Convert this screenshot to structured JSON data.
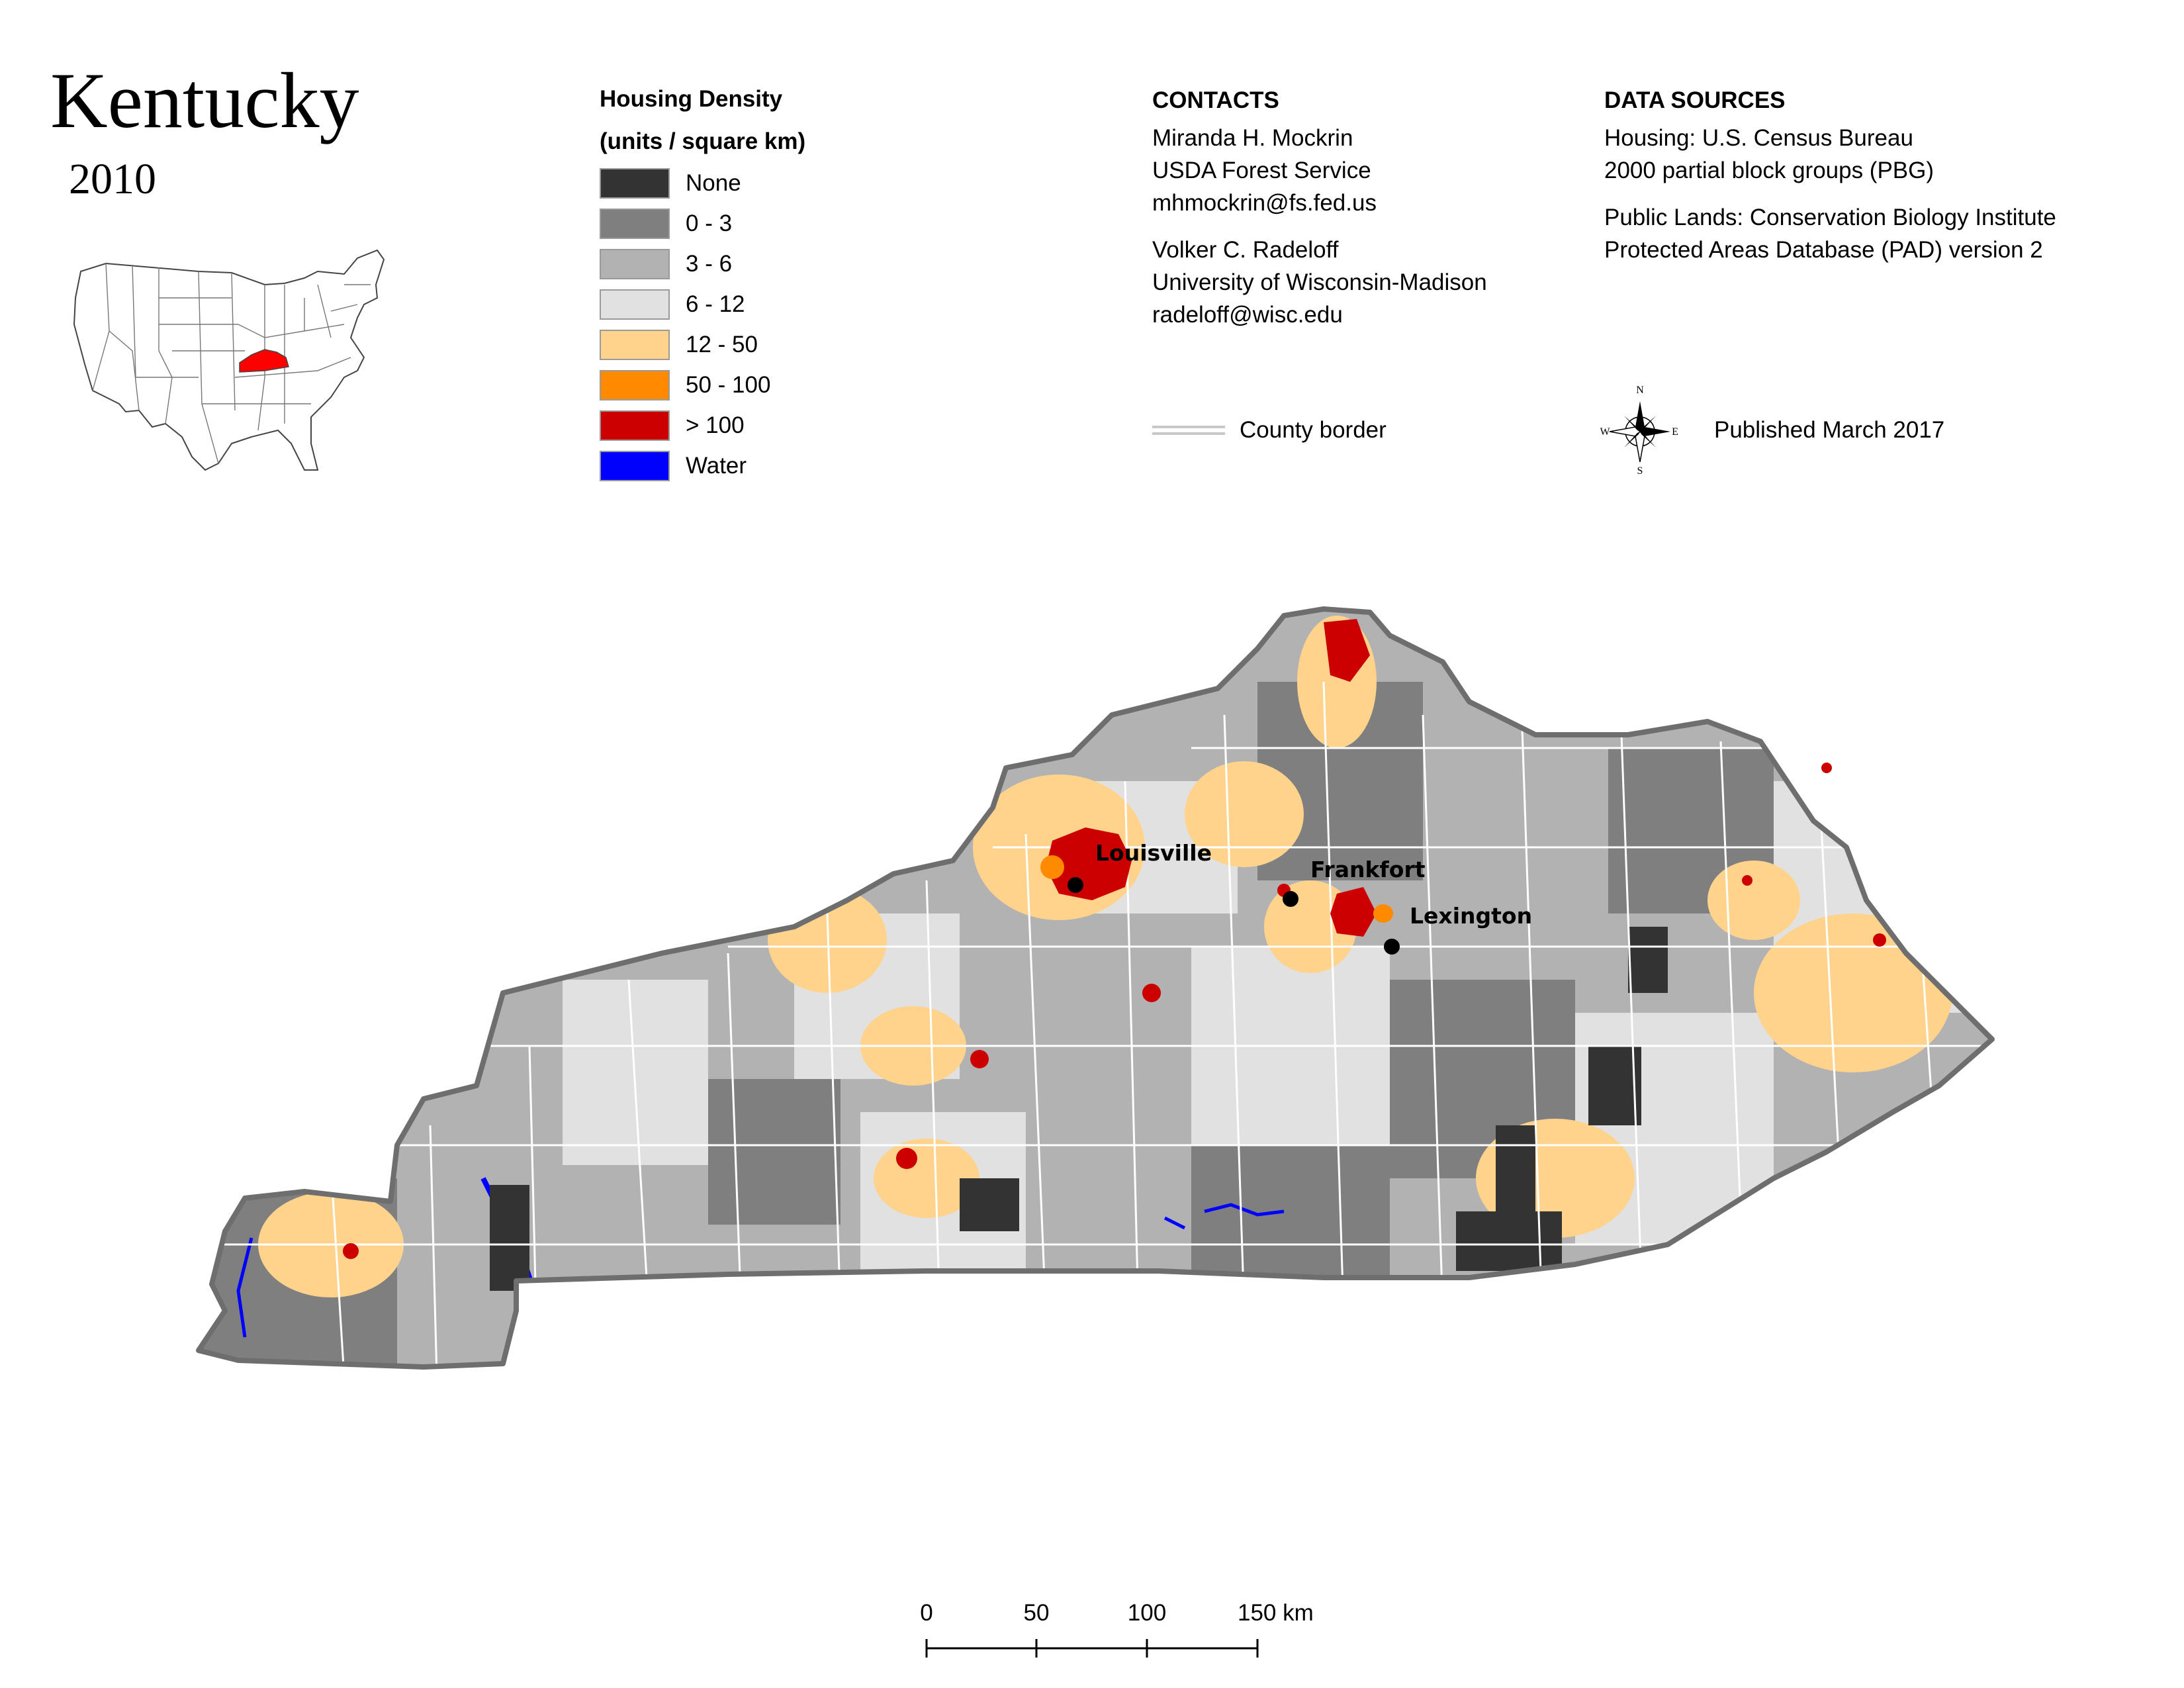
{
  "title": "Kentucky",
  "year": "2010",
  "legend": {
    "heading_line1": "Housing Density",
    "heading_line2": "(units / square km)",
    "items": [
      {
        "label": "None",
        "color": "#333333"
      },
      {
        "label": "0 - 3",
        "color": "#7f7f7f"
      },
      {
        "label": "3 - 6",
        "color": "#b2b2b2"
      },
      {
        "label": "6 - 12",
        "color": "#e1e1e1"
      },
      {
        "label": "12 - 50",
        "color": "#ffd38c"
      },
      {
        "label": "50 - 100",
        "color": "#ff8a00"
      },
      {
        "label": "> 100",
        "color": "#cc0000"
      },
      {
        "label": "Water",
        "color": "#0000ff"
      }
    ]
  },
  "contacts": {
    "heading": "CONTACTS",
    "person1": [
      "Miranda H. Mockrin",
      "USDA Forest Service",
      "mhmockrin@fs.fed.us"
    ],
    "person2": [
      "Volker C. Radeloff",
      "University of Wisconsin-Madison",
      "radeloff@wisc.edu"
    ]
  },
  "data_sources": {
    "heading": "DATA SOURCES",
    "housing": [
      "Housing: U.S. Census Bureau",
      "2000 partial block groups (PBG)"
    ],
    "public_lands": [
      "Public Lands: Conservation Biology Institute",
      "Protected Areas Database (PAD) version 2"
    ]
  },
  "county_border_label": "County border",
  "published": "Published March 2017",
  "compass": {
    "n": "N",
    "s": "S",
    "e": "E",
    "w": "W"
  },
  "cities": [
    {
      "name": "Louisville"
    },
    {
      "name": "Frankfort"
    },
    {
      "name": "Lexington"
    }
  ],
  "scale": {
    "labels": [
      "0",
      "50",
      "100",
      "150 km"
    ]
  },
  "colors": {
    "state_outline": "#6e6e6e",
    "county_lines": "#ffffff",
    "inset_highlight": "#ff0000",
    "city_marker": "#000000"
  }
}
